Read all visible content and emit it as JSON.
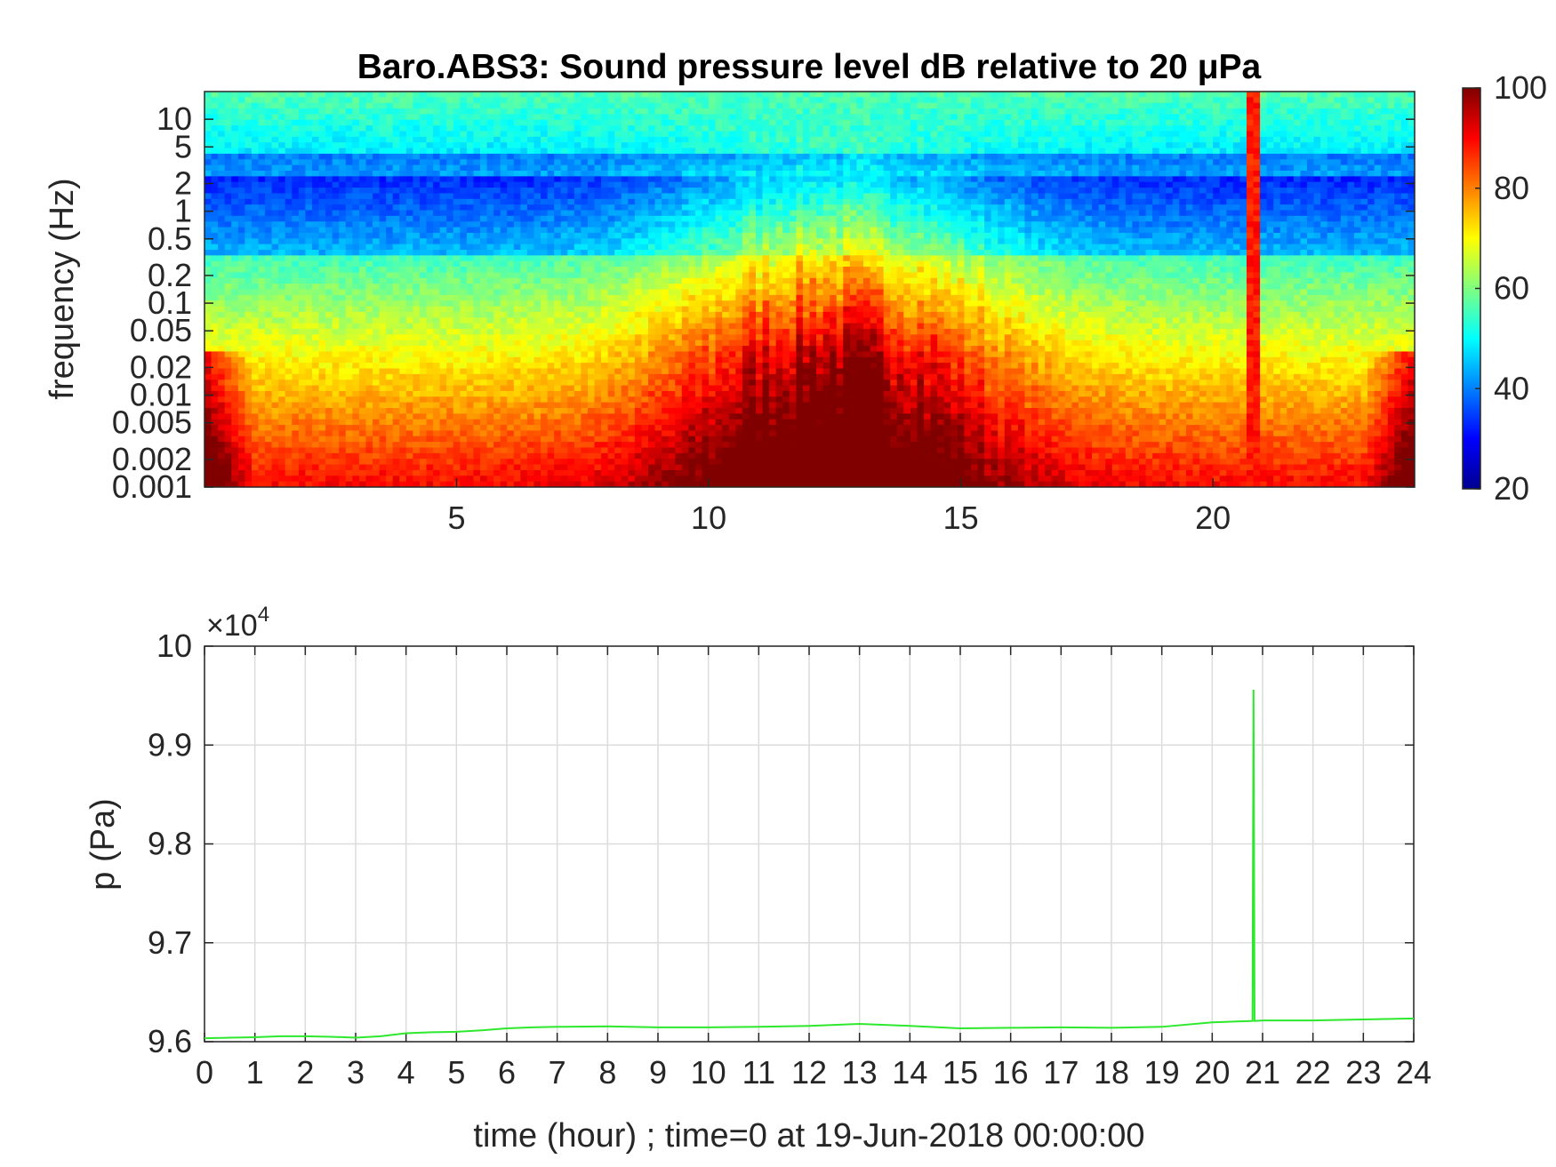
{
  "chart_data": [
    {
      "type": "heatmap",
      "title": "Baro.ABS3: Sound pressure level dB relative to 20 μPa",
      "ylabel": "frequency (Hz)",
      "xlabel": "",
      "xlim": [
        0,
        24
      ],
      "x_ticks": [
        5,
        10,
        15,
        20
      ],
      "y_scale": "log",
      "ylim": [
        0.001,
        20
      ],
      "y_ticks": [
        0.001,
        0.002,
        0.005,
        0.01,
        0.02,
        0.05,
        0.1,
        0.2,
        0.5,
        1,
        2,
        5,
        10
      ],
      "y_tick_labels": [
        "0.001",
        "0.002",
        "0.005",
        "0.01",
        "0.02",
        "0.05",
        "0.1",
        "0.2",
        "0.5",
        "1",
        "2",
        "5",
        "10"
      ],
      "colorbar": {
        "colormap": "jet",
        "range": [
          20,
          100
        ],
        "ticks": [
          20,
          40,
          60,
          80,
          100
        ]
      },
      "features": [
        {
          "description": "high level at low frequencies (<0.005 Hz) throughout the day",
          "level_db": 85
        },
        {
          "description": "broadband activity roughly 9 to 18 h",
          "level_db": 75
        },
        {
          "description": "vertical impulse at about 20.8 h",
          "level_db": 95
        }
      ]
    },
    {
      "type": "line",
      "ylabel": "p (Pa)",
      "xlabel": "time (hour) ; time=0 at 19-Jun-2018 00:00:00",
      "y_exponent_label": "×10",
      "y_exponent": "4",
      "xlim": [
        0,
        24
      ],
      "ylim": [
        96000,
        100000
      ],
      "x_ticks": [
        0,
        1,
        2,
        3,
        4,
        5,
        6,
        7,
        8,
        9,
        10,
        11,
        12,
        13,
        14,
        15,
        16,
        17,
        18,
        19,
        20,
        21,
        22,
        23,
        24
      ],
      "y_ticks": [
        9.6,
        9.7,
        9.8,
        9.9,
        10
      ],
      "y_tick_labels": [
        "9.6",
        "9.7",
        "9.8",
        "9.9",
        "10"
      ],
      "grid": true,
      "line_color": "#2ee82e",
      "series": [
        {
          "x": [
            0,
            0.5,
            1,
            1.5,
            2,
            2.5,
            3,
            3.5,
            4,
            4.5,
            5,
            5.5,
            6,
            6.5,
            7,
            8,
            9,
            10,
            11,
            12,
            13,
            14,
            15,
            16,
            17,
            18,
            19,
            20,
            20.8,
            20.82,
            20.84,
            20.86,
            21,
            22,
            23,
            24
          ],
          "y": [
            96035,
            96040,
            96045,
            96055,
            96055,
            96050,
            96040,
            96055,
            96085,
            96095,
            96100,
            96115,
            96135,
            96145,
            96150,
            96155,
            96145,
            96145,
            96150,
            96160,
            96180,
            96160,
            96135,
            96140,
            96145,
            96140,
            96150,
            96195,
            96210,
            99560,
            96210,
            96210,
            96215,
            96215,
            96225,
            96235
          ]
        }
      ]
    }
  ]
}
